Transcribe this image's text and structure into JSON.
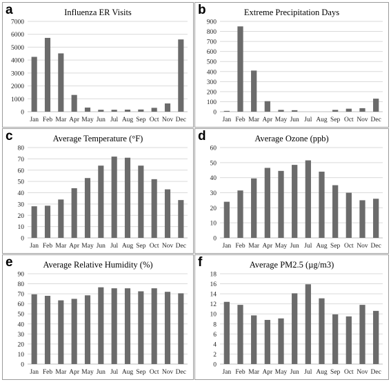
{
  "months": [
    "Jan",
    "Feb",
    "Mar",
    "Apr",
    "May",
    "Jun",
    "Jul",
    "Aug",
    "Sep",
    "Oct",
    "Nov",
    "Dec"
  ],
  "bar_color": "#6b6b6b",
  "grid_color": "#d9d9d9",
  "chart_data": [
    {
      "letter": "a",
      "type": "bar",
      "title": "Influenza ER Visits",
      "categories": [
        "Jan",
        "Feb",
        "Mar",
        "Apr",
        "May",
        "Jun",
        "Jul",
        "Aug",
        "Sep",
        "Oct",
        "Nov",
        "Dec"
      ],
      "values": [
        4250,
        5720,
        4520,
        1300,
        320,
        150,
        150,
        160,
        170,
        300,
        640,
        5600
      ],
      "ylim": [
        0,
        7000
      ],
      "yticks": [
        0,
        1000,
        2000,
        3000,
        4000,
        5000,
        6000,
        7000
      ],
      "grid": true
    },
    {
      "letter": "b",
      "type": "bar",
      "title": "Extreme Precipitation Days",
      "categories": [
        "Jan",
        "Feb",
        "Mar",
        "Apr",
        "May",
        "Jun",
        "Jul",
        "Aug",
        "Sep",
        "Oct",
        "Nov",
        "Dec"
      ],
      "values": [
        8,
        850,
        410,
        105,
        18,
        15,
        0,
        0,
        18,
        30,
        35,
        130
      ],
      "ylim": [
        0,
        900
      ],
      "yticks": [
        0,
        100,
        200,
        300,
        400,
        500,
        600,
        700,
        800,
        900
      ],
      "grid": true
    },
    {
      "letter": "c",
      "type": "bar",
      "title": "Average Temperature (°F)",
      "categories": [
        "Jan",
        "Feb",
        "Mar",
        "Apr",
        "May",
        "Jun",
        "Jul",
        "Aug",
        "Sep",
        "Oct",
        "Nov",
        "Dec"
      ],
      "values": [
        28,
        28.5,
        34,
        44,
        53,
        64,
        72,
        71,
        64,
        52,
        43,
        33.5
      ],
      "ylim": [
        0,
        80
      ],
      "yticks": [
        0,
        10,
        20,
        30,
        40,
        50,
        60,
        70,
        80
      ],
      "grid": true
    },
    {
      "letter": "d",
      "type": "bar",
      "title": "Average Ozone (ppb)",
      "categories": [
        "Jan",
        "Feb",
        "Mar",
        "Apr",
        "May",
        "Jun",
        "Jul",
        "Aug",
        "Sep",
        "Oct",
        "Nov",
        "Dec"
      ],
      "values": [
        24,
        31.5,
        39.5,
        46.5,
        44.5,
        48.5,
        51.5,
        44,
        35,
        30,
        25,
        26
      ],
      "ylim": [
        0,
        60
      ],
      "yticks": [
        0,
        10,
        20,
        30,
        40,
        50,
        60
      ],
      "grid": true
    },
    {
      "letter": "e",
      "type": "bar",
      "title": "Average Relative Humidity (%)",
      "categories": [
        "Jan",
        "Feb",
        "Mar",
        "Apr",
        "May",
        "Jun",
        "Jul",
        "Aug",
        "Sep",
        "Oct",
        "Nov",
        "Dec"
      ],
      "values": [
        69.5,
        68,
        63.5,
        65,
        68.5,
        76.5,
        75.5,
        75.5,
        72.5,
        75.5,
        72,
        70.5
      ],
      "ylim": [
        0,
        90
      ],
      "yticks": [
        0,
        10,
        20,
        30,
        40,
        50,
        60,
        70,
        80,
        90
      ],
      "grid": true
    },
    {
      "letter": "f",
      "type": "bar",
      "title": "Average PM2.5 (µg/m3)",
      "categories": [
        "Jan",
        "Feb",
        "Mar",
        "Apr",
        "May",
        "Jun",
        "Jul",
        "Aug",
        "Sep",
        "Oct",
        "Nov",
        "Dec"
      ],
      "values": [
        12.4,
        11.8,
        9.7,
        8.8,
        9.1,
        14.1,
        15.9,
        13.1,
        9.9,
        9.5,
        11.8,
        10.6
      ],
      "ylim": [
        0,
        18
      ],
      "yticks": [
        0,
        2,
        4,
        6,
        8,
        10,
        12,
        14,
        16,
        18
      ],
      "grid": true
    }
  ]
}
